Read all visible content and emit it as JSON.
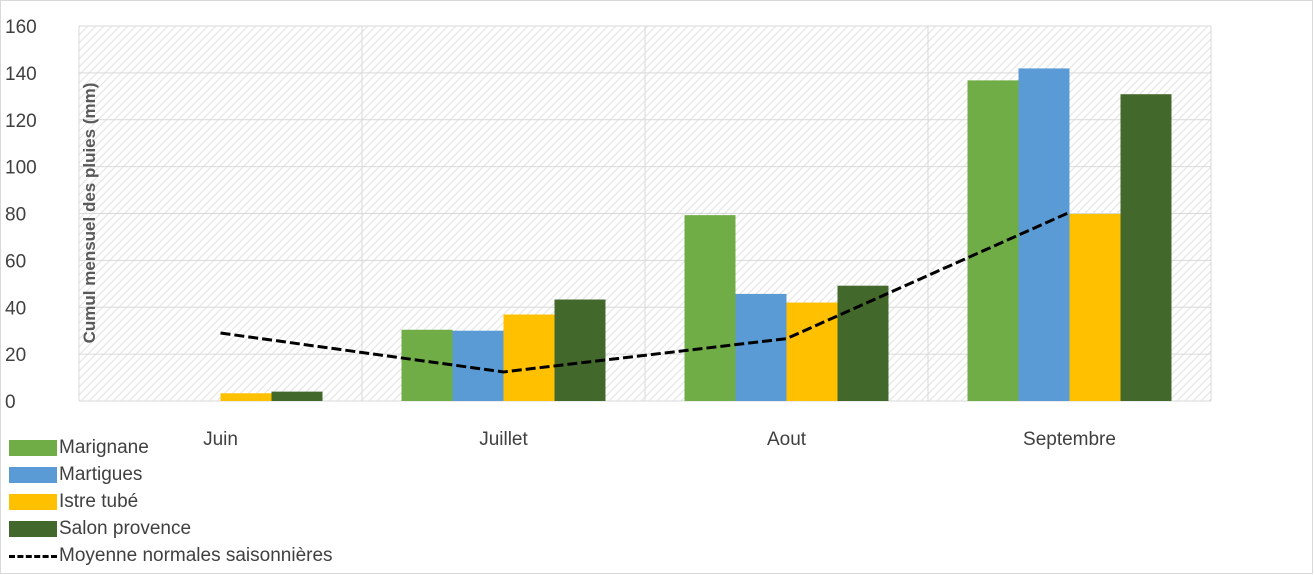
{
  "chart_data": {
    "type": "bar",
    "title": "",
    "xlabel": "",
    "ylabel": "Cumul mensuel des pluies (mm)",
    "ylim": [
      0,
      160
    ],
    "yticks": [
      0,
      20,
      40,
      60,
      80,
      100,
      120,
      140,
      160
    ],
    "categories": [
      "Juin",
      "Juillet",
      "Aout",
      "Septembre"
    ],
    "grid": true,
    "legend_position": "bottom-left",
    "series": [
      {
        "name": "Marignane",
        "kind": "bar",
        "color": "#70ad47",
        "values": [
          0,
          30.4,
          79.3,
          136.8
        ]
      },
      {
        "name": "Martigues",
        "kind": "bar",
        "color": "#5b9bd5",
        "values": [
          0,
          30.0,
          45.7,
          141.9
        ]
      },
      {
        "name": "Istre tubé",
        "kind": "bar",
        "color": "#ffc000",
        "values": [
          3.3,
          36.9,
          42.0,
          79.8
        ]
      },
      {
        "name": "Salon provence",
        "kind": "bar",
        "color": "#43682b",
        "values": [
          4.0,
          43.3,
          49.2,
          130.9
        ]
      },
      {
        "name": "Moyenne normales saisonnières",
        "kind": "line",
        "style": "dashed",
        "color": "#000000",
        "values": [
          29.0,
          12.4,
          26.6,
          80.5
        ]
      }
    ]
  }
}
